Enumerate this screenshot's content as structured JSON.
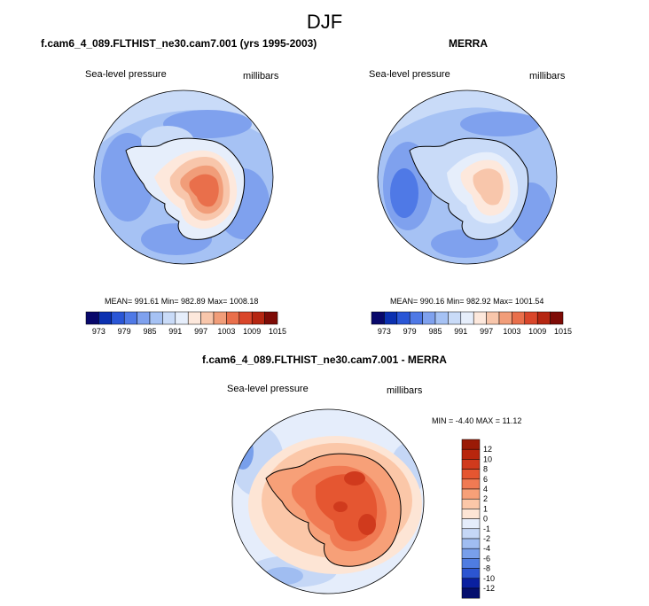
{
  "figure": {
    "title": "DJF"
  },
  "panels": [
    {
      "title": "f.cam6_4_089.FLTHIST_ne30.cam7.001 (yrs 1995-2003)",
      "variable": "Sea-level pressure",
      "units": "millibars",
      "stats": "MEAN= 991.61  Min= 982.89  Max= 1008.18"
    },
    {
      "title": "MERRA",
      "variable": "Sea-level pressure",
      "units": "millibars",
      "stats": "MEAN= 990.16  Min= 982.92  Max= 1001.54"
    },
    {
      "title": "f.cam6_4_089.FLTHIST_ne30.cam7.001 - MERRA",
      "variable": "Sea-level pressure",
      "units": "millibars",
      "stats": "MIN =  -4.40 MAX =  11.12"
    }
  ],
  "chart_data": [
    {
      "type": "heatmap",
      "projection": "south polar stereographic",
      "title": "f.cam6_4_089.FLTHIST_ne30.cam7.001 (yrs 1995-2003)",
      "field": "Sea-level pressure",
      "units": "millibars",
      "mean": 991.61,
      "min": 982.89,
      "max": 1008.18,
      "colorbar": {
        "orientation": "horizontal",
        "levels": [
          973,
          976,
          979,
          982,
          985,
          988,
          991,
          994,
          997,
          1000,
          1003,
          1006,
          1009,
          1012,
          1015
        ],
        "labels": [
          "973",
          "979",
          "985",
          "991",
          "997",
          "1003",
          "1009",
          "1015"
        ]
      }
    },
    {
      "type": "heatmap",
      "projection": "south polar stereographic",
      "title": "MERRA",
      "field": "Sea-level pressure",
      "units": "millibars",
      "mean": 990.16,
      "min": 982.92,
      "max": 1001.54,
      "colorbar": {
        "orientation": "horizontal",
        "levels": [
          973,
          976,
          979,
          982,
          985,
          988,
          991,
          994,
          997,
          1000,
          1003,
          1006,
          1009,
          1012,
          1015
        ],
        "labels": [
          "973",
          "979",
          "985",
          "991",
          "997",
          "1003",
          "1009",
          "1015"
        ]
      }
    },
    {
      "type": "heatmap",
      "projection": "south polar stereographic",
      "title": "f.cam6_4_089.FLTHIST_ne30.cam7.001 - MERRA",
      "field": "Sea-level pressure",
      "units": "millibars",
      "min": -4.4,
      "max": 11.12,
      "colorbar": {
        "orientation": "vertical",
        "levels": [
          -12,
          -10,
          -8,
          -6,
          -4,
          -2,
          -1,
          0,
          1,
          2,
          4,
          6,
          8,
          10,
          12
        ],
        "labels": [
          "12",
          "10",
          "8",
          "6",
          "4",
          "2",
          "1",
          "0",
          "-1",
          "-2",
          "-4",
          "-6",
          "-8",
          "-10",
          "-12"
        ]
      }
    }
  ],
  "colors": {
    "abs_scale": [
      "#08086b",
      "#0b30b0",
      "#2a56d6",
      "#4f79e6",
      "#7fa1ee",
      "#a6c2f4",
      "#c9dbf8",
      "#e6eefb",
      "#fde8dc",
      "#f8c6ab",
      "#f19d79",
      "#e96f4b",
      "#d9462a",
      "#b52611",
      "#7e0b06"
    ],
    "diff_scale": [
      "#9a1a06",
      "#b8260d",
      "#d03a1d",
      "#e55631",
      "#f07a53",
      "#f7a078",
      "#fbc7a8",
      "#fde5d5",
      "#e5edfb",
      "#c5d7f6",
      "#a0bdf1",
      "#789feb",
      "#4f7ce1",
      "#2c55d1",
      "#0a20a0",
      "#050f6e"
    ]
  }
}
